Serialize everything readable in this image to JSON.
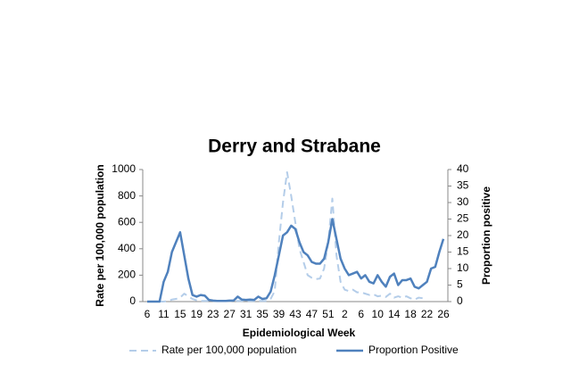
{
  "chart_data": {
    "type": "line",
    "title": "Derry and Strabane",
    "x_label": "Epidemiological Week",
    "y_label": "Rate per 100,000 population",
    "y2_label": "Proportion positive",
    "categories": [
      "6",
      null,
      null,
      null,
      "11",
      null,
      null,
      null,
      "15",
      null,
      null,
      null,
      "19",
      null,
      null,
      null,
      "23",
      null,
      null,
      null,
      "27",
      null,
      null,
      null,
      "31",
      null,
      null,
      null,
      "35",
      null,
      null,
      null,
      "39",
      null,
      null,
      null,
      "43",
      null,
      null,
      null,
      "47",
      null,
      null,
      null,
      "51",
      null,
      null,
      null,
      "2",
      null,
      null,
      null,
      "6",
      null,
      null,
      null,
      "10",
      null,
      null,
      null,
      "14",
      null,
      null,
      null,
      "18",
      null,
      null,
      null,
      "22",
      null,
      null,
      null,
      "26"
    ],
    "ylim": [
      0,
      1000
    ],
    "yticks": [
      0,
      200,
      400,
      600,
      800,
      1000
    ],
    "y2lim": [
      0,
      40
    ],
    "y2ticks": [
      0,
      5,
      10,
      15,
      20,
      25,
      30,
      35,
      40
    ],
    "legend": "bottom",
    "series": [
      {
        "name": "Rate per 100,000 population",
        "color": "#b4cde9",
        "dashed": true,
        "values": [
          0,
          0,
          0,
          0,
          0,
          5,
          15,
          20,
          30,
          60,
          40,
          20,
          10,
          5,
          5,
          5,
          5,
          5,
          5,
          5,
          5,
          5,
          5,
          5,
          5,
          5,
          5,
          5,
          5,
          5,
          20,
          80,
          450,
          750,
          980,
          800,
          600,
          400,
          300,
          200,
          180,
          170,
          175,
          250,
          450,
          780,
          350,
          150,
          90,
          80,
          90,
          70,
          70,
          60,
          50,
          55,
          40,
          45,
          35,
          60,
          30,
          40,
          30,
          40,
          25,
          15,
          30,
          25,
          null,
          null,
          null,
          null,
          null
        ]
      },
      {
        "name": "Proportion Positive",
        "color": "#4f81bd",
        "axis": "y2",
        "values": [
          0,
          0,
          0,
          0,
          6,
          9,
          15,
          18,
          21,
          14,
          7,
          2,
          1.5,
          2,
          1.8,
          0.5,
          0.3,
          0.2,
          0.2,
          0.2,
          0.3,
          0.3,
          1.5,
          0.6,
          0.5,
          0.6,
          0.5,
          1.5,
          0.8,
          1,
          3,
          8,
          14,
          20,
          21,
          23,
          22,
          18,
          15,
          14,
          12,
          11.5,
          11.5,
          13,
          18,
          25,
          19,
          13,
          10,
          8,
          8.5,
          9,
          7,
          8,
          6,
          5.5,
          8,
          6,
          4.5,
          7.5,
          8.5,
          5,
          6.5,
          6.5,
          7,
          4.5,
          4,
          5,
          6,
          10,
          10.5,
          15,
          19
        ]
      }
    ]
  }
}
